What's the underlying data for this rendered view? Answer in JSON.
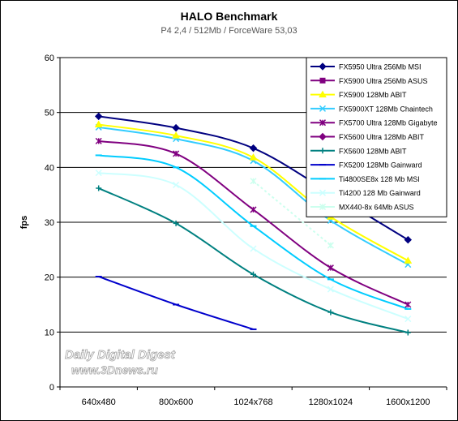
{
  "chart_data": {
    "type": "line",
    "title": "HALO Benchmark",
    "subtitle": "P4 2,4 / 512Mb / ForceWare 53,03",
    "ylabel": "fps",
    "xlabel": "",
    "ylim": [
      0,
      60
    ],
    "yticks": [
      0,
      10,
      20,
      30,
      40,
      50,
      60
    ],
    "grid": true,
    "legend": "top-right",
    "categories": [
      "640x480",
      "800x600",
      "1024x768",
      "1280x1024",
      "1600x1200"
    ],
    "series": [
      {
        "name": "FX5950 Ultra 256Mb MSI",
        "color": "#000080",
        "marker": "diamond",
        "values": [
          49.3,
          47.2,
          43.5,
          35.3,
          26.8
        ]
      },
      {
        "name": "FX5900 Ultra 256Mb ASUS",
        "color": "#800080",
        "marker": "square",
        "values": [
          null,
          null,
          null,
          null,
          null
        ]
      },
      {
        "name": "FX5900 128Mb ABIT",
        "color": "#ffff00",
        "marker": "triangle",
        "values": [
          47.8,
          45.8,
          41.8,
          31.0,
          23.0
        ]
      },
      {
        "name": "FX5900XT 128Mb Chaintech",
        "color": "#33ccff",
        "marker": "x",
        "values": [
          47.3,
          45.2,
          41.2,
          30.3,
          22.3
        ]
      },
      {
        "name": "FX5700 Ultra 128Mb Gigabyte",
        "color": "#800080",
        "marker": "star",
        "values": [
          44.8,
          42.5,
          32.3,
          21.7,
          15.0
        ]
      },
      {
        "name": "FX5600 Ultra 128Mb ABIT",
        "color": "#800080",
        "marker": "diamond",
        "values": [
          null,
          null,
          null,
          null,
          null
        ]
      },
      {
        "name": "FX5600 128Mb ABIT",
        "color": "#008080",
        "marker": "plus",
        "values": [
          36.2,
          29.8,
          20.5,
          13.6,
          9.9
        ]
      },
      {
        "name": "FX5200 128Mb Gainward",
        "color": "#0000cc",
        "marker": "dash",
        "values": [
          20.1,
          15.0,
          10.5,
          null,
          null
        ]
      },
      {
        "name": "Ti4800SE8x 128 Mb MSI",
        "color": "#00ccff",
        "marker": "dash",
        "values": [
          42.2,
          40.0,
          29.3,
          19.6,
          14.2
        ]
      },
      {
        "name": "Ti4200 128 Mb Gainward",
        "color": "#ccffff",
        "marker": "x",
        "values": [
          39.0,
          36.8,
          25.2,
          17.8,
          12.4
        ]
      },
      {
        "name": "MX440-8x 64Mb ASUS",
        "color": "#ccffee",
        "marker": "star",
        "values": [
          null,
          null,
          37.5,
          25.8,
          null
        ]
      }
    ]
  },
  "watermark": {
    "line1": "Daily Digital Digest",
    "line2": "www.3Dnews.ru"
  }
}
